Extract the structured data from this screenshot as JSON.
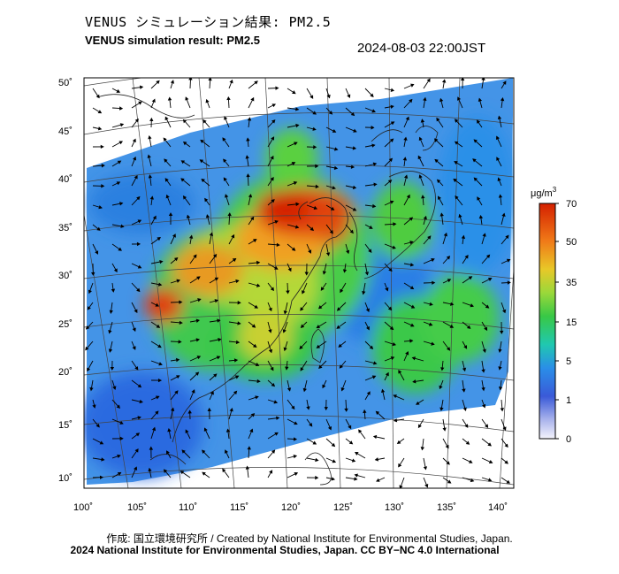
{
  "title_jp": "VENUS シミュレーション結果: PM2.5",
  "title_en": "VENUS simulation result: PM2.5",
  "timestamp": "2024-08-03 22:00JST",
  "map": {
    "lat_ticks": [
      "50˚",
      "45˚",
      "40˚",
      "35˚",
      "30˚",
      "25˚",
      "20˚",
      "15˚",
      "10˚"
    ],
    "lon_ticks": [
      "100˚",
      "105˚",
      "110˚",
      "115˚",
      "120˚",
      "125˚",
      "130˚",
      "135˚",
      "140˚"
    ]
  },
  "colorbar": {
    "unit_base": "μg/m",
    "unit_sup": "3",
    "labels": [
      "70",
      "50",
      "35",
      "15",
      "5",
      "1",
      "0"
    ],
    "colors": [
      "#d42a00",
      "#f06a10",
      "#f0a020",
      "#d8c828",
      "#9ad83a",
      "#38c846",
      "#20c8a0",
      "#28a8e8",
      "#2a6ae0",
      "#3a4ad0",
      "#8a9ae0",
      "#dcdcf4"
    ]
  },
  "credits": {
    "line1": "作成: 国立環境研究所 / Created by National Institute for Environmental Studies, Japan.",
    "line2": "2024 National Institute for Environmental Studies, Japan. CC BY−NC 4.0 International"
  }
}
